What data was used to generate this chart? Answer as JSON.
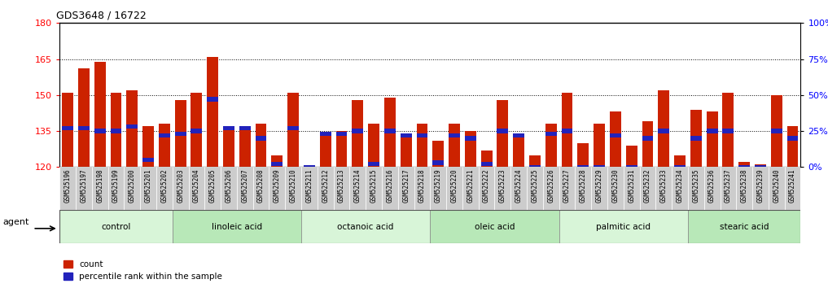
{
  "title": "GDS3648 / 16722",
  "samples": [
    "GSM525196",
    "GSM525197",
    "GSM525198",
    "GSM525199",
    "GSM525200",
    "GSM525201",
    "GSM525202",
    "GSM525203",
    "GSM525204",
    "GSM525205",
    "GSM525206",
    "GSM525207",
    "GSM525208",
    "GSM525209",
    "GSM525210",
    "GSM525211",
    "GSM525212",
    "GSM525213",
    "GSM525214",
    "GSM525215",
    "GSM525216",
    "GSM525217",
    "GSM525218",
    "GSM525219",
    "GSM525220",
    "GSM525221",
    "GSM525222",
    "GSM525223",
    "GSM525224",
    "GSM525225",
    "GSM525226",
    "GSM525227",
    "GSM525228",
    "GSM525229",
    "GSM525230",
    "GSM525231",
    "GSM525232",
    "GSM525233",
    "GSM525234",
    "GSM525235",
    "GSM525236",
    "GSM525237",
    "GSM525238",
    "GSM525239",
    "GSM525240",
    "GSM525241"
  ],
  "counts": [
    151,
    161,
    164,
    151,
    152,
    137,
    138,
    148,
    151,
    166,
    137,
    137,
    138,
    125,
    151,
    120,
    133,
    135,
    148,
    138,
    149,
    133,
    138,
    131,
    138,
    135,
    127,
    148,
    134,
    125,
    138,
    151,
    130,
    138,
    143,
    129,
    139,
    152,
    125,
    144,
    143,
    151,
    122,
    121,
    150,
    137
  ],
  "percentile_ranks_pct": [
    27,
    27,
    25,
    25,
    28,
    5,
    22,
    23,
    25,
    47,
    27,
    27,
    20,
    2,
    27,
    0,
    23,
    23,
    25,
    2,
    25,
    22,
    22,
    3,
    22,
    20,
    2,
    25,
    22,
    0,
    23,
    25,
    0,
    0,
    22,
    0,
    20,
    25,
    0,
    20,
    25,
    25,
    0,
    0,
    25,
    20
  ],
  "groups": [
    {
      "label": "control",
      "start": 0,
      "end": 6
    },
    {
      "label": "linoleic acid",
      "start": 7,
      "end": 14
    },
    {
      "label": "octanoic acid",
      "start": 15,
      "end": 22
    },
    {
      "label": "oleic acid",
      "start": 23,
      "end": 30
    },
    {
      "label": "palmitic acid",
      "start": 31,
      "end": 38
    },
    {
      "label": "stearic acid",
      "start": 39,
      "end": 45
    }
  ],
  "group_colors": [
    "#d8f5d8",
    "#b8e8b8",
    "#d8f5d8",
    "#b8e8b8",
    "#d8f5d8",
    "#b8e8b8"
  ],
  "ylim_left": [
    120,
    180
  ],
  "ylim_right": [
    0,
    100
  ],
  "yticks_left": [
    120,
    135,
    150,
    165,
    180
  ],
  "yticks_right": [
    0,
    25,
    50,
    75,
    100
  ],
  "bar_color": "#cc2200",
  "blue_color": "#2222bb",
  "bar_width": 0.7,
  "agent_label": "agent",
  "legend_count": "count",
  "legend_pct": "percentile rank within the sample",
  "tick_label_bg": "#cccccc"
}
